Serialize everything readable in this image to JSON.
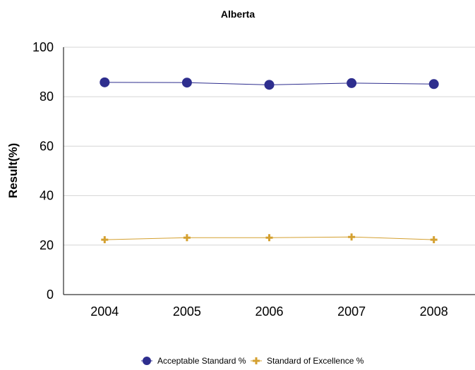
{
  "chart_data": {
    "type": "line",
    "title": "Alberta",
    "xlabel": "",
    "ylabel": "Result(%)",
    "categories": [
      "2004",
      "2005",
      "2006",
      "2007",
      "2008"
    ],
    "ylim": [
      0,
      100
    ],
    "yticks": [
      0,
      20,
      40,
      60,
      80,
      100
    ],
    "grid": true,
    "legend_position": "bottom",
    "series": [
      {
        "name": "Acceptable Standard %",
        "values": [
          85.8,
          85.7,
          84.8,
          85.5,
          85.1
        ],
        "color": "#2e2e8e",
        "marker": "circle"
      },
      {
        "name": "Standard of Excellence %",
        "values": [
          22.2,
          23.0,
          23.0,
          23.3,
          22.2
        ],
        "color": "#d4a030",
        "marker": "plus"
      }
    ]
  }
}
